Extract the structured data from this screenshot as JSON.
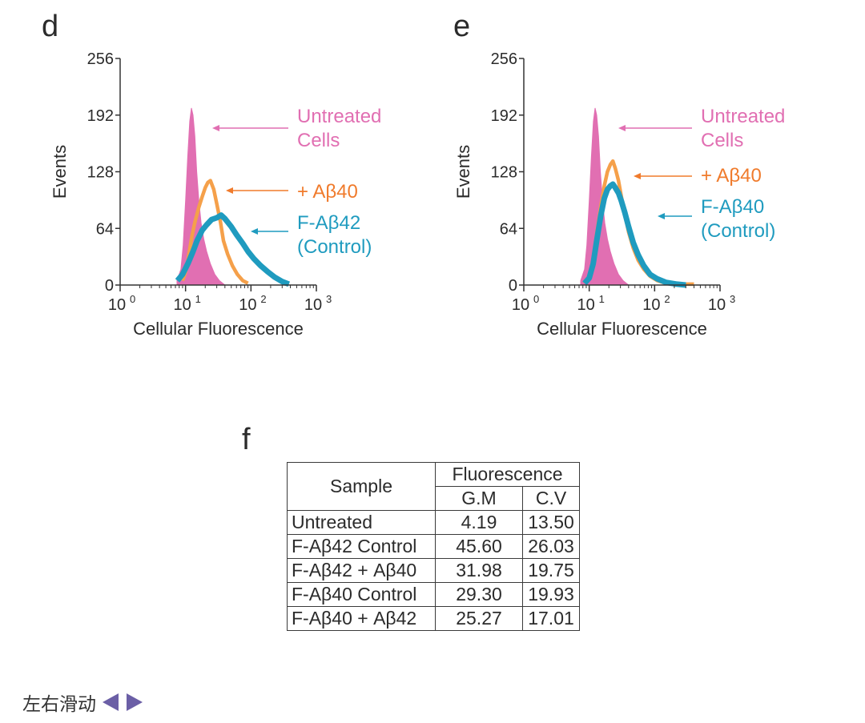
{
  "panels": [
    {
      "letter": "d",
      "chart_data": {
        "type": "area",
        "xlabel": "Cellular Fluorescence",
        "ylabel": "Events",
        "xscale": "log",
        "xlim": [
          1,
          1000
        ],
        "ylim": [
          0,
          256
        ],
        "xticks": [
          1,
          10,
          100,
          1000
        ],
        "xtick_labels": [
          {
            "base": "10",
            "exp": "0"
          },
          {
            "base": "10",
            "exp": "1"
          },
          {
            "base": "10",
            "exp": "2"
          },
          {
            "base": "10",
            "exp": "3"
          }
        ],
        "yticks": [
          "0",
          "64",
          "128",
          "192",
          "256"
        ],
        "series": [
          {
            "name": "Untreated Cells",
            "style": "filled",
            "color": "#e16fb2",
            "x": [
              7.4,
              8.5,
              9.2,
              10.0,
              10.8,
              11.6,
              12.3,
              13.0,
              13.9,
              14.8,
              16.0,
              17.3,
              19.0,
              21.0,
              24.0,
              28.0,
              33.0,
              40.0
            ],
            "y": [
              5,
              18,
              45,
              95,
              145,
              185,
              200,
              192,
              168,
              128,
              95,
              70,
              52,
              38,
              24,
              12,
              5,
              0
            ]
          },
          {
            "name": "+Aβ40",
            "style": "line",
            "color": "#f5a04a",
            "x": [
              9,
              10,
              11,
              12.5,
              14,
              16,
              18,
              20,
              22,
              24,
              27,
              30,
              34,
              38,
              44,
              52,
              62,
              75,
              90
            ],
            "y": [
              5,
              15,
              30,
              55,
              72,
              88,
              100,
              110,
              116,
              118,
              108,
              92,
              72,
              50,
              35,
              22,
              12,
              5,
              2
            ]
          },
          {
            "name": "F-Aβ42 (Control)",
            "style": "line",
            "color": "#1f9bbf",
            "x": [
              7.5,
              9,
              11,
              13,
              15,
              18,
              21,
              25,
              30,
              35,
              40,
              50,
              60,
              75,
              90,
              110,
              140,
              180,
              230,
              300,
              380
            ],
            "y": [
              5,
              12,
              25,
              38,
              50,
              62,
              68,
              74,
              76,
              79,
              75,
              66,
              57,
              47,
              38,
              30,
              22,
              15,
              9,
              4,
              1
            ]
          }
        ],
        "annotations": [
          {
            "text": [
              "Untreated",
              "Cells"
            ],
            "color": "#e16fb2"
          },
          {
            "text": [
              "+ Aβ40"
            ],
            "color": "#f07b2c"
          },
          {
            "text": [
              "F-Aβ42",
              "(Control)"
            ],
            "color": "#1f9bbf"
          }
        ]
      }
    },
    {
      "letter": "e",
      "chart_data": {
        "type": "area",
        "xlabel": "Cellular Fluorescence",
        "ylabel": "Events",
        "xscale": "log",
        "xlim": [
          1,
          1000
        ],
        "ylim": [
          0,
          256
        ],
        "xticks": [
          1,
          10,
          100,
          1000
        ],
        "xtick_labels": [
          {
            "base": "10",
            "exp": "0"
          },
          {
            "base": "10",
            "exp": "1"
          },
          {
            "base": "10",
            "exp": "2"
          },
          {
            "base": "10",
            "exp": "3"
          }
        ],
        "yticks": [
          "0",
          "64",
          "128",
          "192",
          "256"
        ],
        "series": [
          {
            "name": "Untreated Cells",
            "style": "filled",
            "color": "#e16fb2",
            "x": [
              7.4,
              8.5,
              9.2,
              10.0,
              10.8,
              11.6,
              12.3,
              13.0,
              13.9,
              14.8,
              16.0,
              17.3,
              19.0,
              21.0,
              24.0,
              28.0,
              33.0,
              40.0
            ],
            "y": [
              5,
              18,
              45,
              95,
              145,
              185,
              200,
              192,
              168,
              128,
              95,
              70,
              52,
              38,
              24,
              12,
              5,
              0
            ]
          },
          {
            "name": "+Aβ40",
            "style": "line",
            "color": "#f5a04a",
            "x": [
              8.5,
              10,
              11.5,
              13,
              15,
              17,
              19,
              21,
              23,
              25,
              28,
              31,
              35,
              40,
              47,
              56,
              68,
              85,
              110,
              150,
              220,
              320,
              400
            ],
            "y": [
              2,
              10,
              28,
              58,
              88,
              112,
              128,
              136,
              140,
              132,
              118,
              100,
              80,
              60,
              42,
              28,
              18,
              10,
              5,
              2,
              1,
              1,
              1
            ]
          },
          {
            "name": "F-Aβ40 (Control)",
            "style": "line",
            "color": "#1f9bbf",
            "x": [
              8.5,
              10,
              11.5,
              13,
              15,
              17,
              19,
              21,
              23,
              25,
              28,
              31,
              35,
              40,
              47,
              56,
              68,
              85,
              110,
              150,
              220,
              300
            ],
            "y": [
              2,
              8,
              24,
              50,
              78,
              98,
              108,
              112,
              114,
              110,
              104,
              95,
              82,
              66,
              48,
              34,
              22,
              12,
              7,
              3,
              1,
              0
            ]
          }
        ],
        "annotations": [
          {
            "text": [
              "Untreated",
              "Cells"
            ],
            "color": "#e16fb2"
          },
          {
            "text": [
              "+ Aβ40"
            ],
            "color": "#f07b2c"
          },
          {
            "text": [
              "F-Aβ40",
              "(Control)"
            ],
            "color": "#1f9bbf"
          }
        ]
      }
    }
  ],
  "table": {
    "letter": "f",
    "sample_header": "Sample",
    "fluorescence_header": "Fluorescence",
    "gm_header": "G.M",
    "cv_header": "C.V",
    "rows": [
      {
        "sample": "Untreated",
        "gm": "4.19",
        "cv": "13.50"
      },
      {
        "sample": "F-Aβ42 Control",
        "gm": "45.60",
        "cv": "26.03"
      },
      {
        "sample": "F-Aβ42 + Aβ40",
        "gm": "31.98",
        "cv": "19.75"
      },
      {
        "sample": "F-Aβ40 Control",
        "gm": "29.30",
        "cv": "19.93"
      },
      {
        "sample": "F-Aβ40 + Aβ42",
        "gm": "25.27",
        "cv": "17.01"
      }
    ]
  },
  "footer": {
    "label": "左右滑动",
    "left_icon": "triangle-left-icon",
    "right_icon": "triangle-right-icon",
    "icon_color": "#6b5fa6"
  }
}
